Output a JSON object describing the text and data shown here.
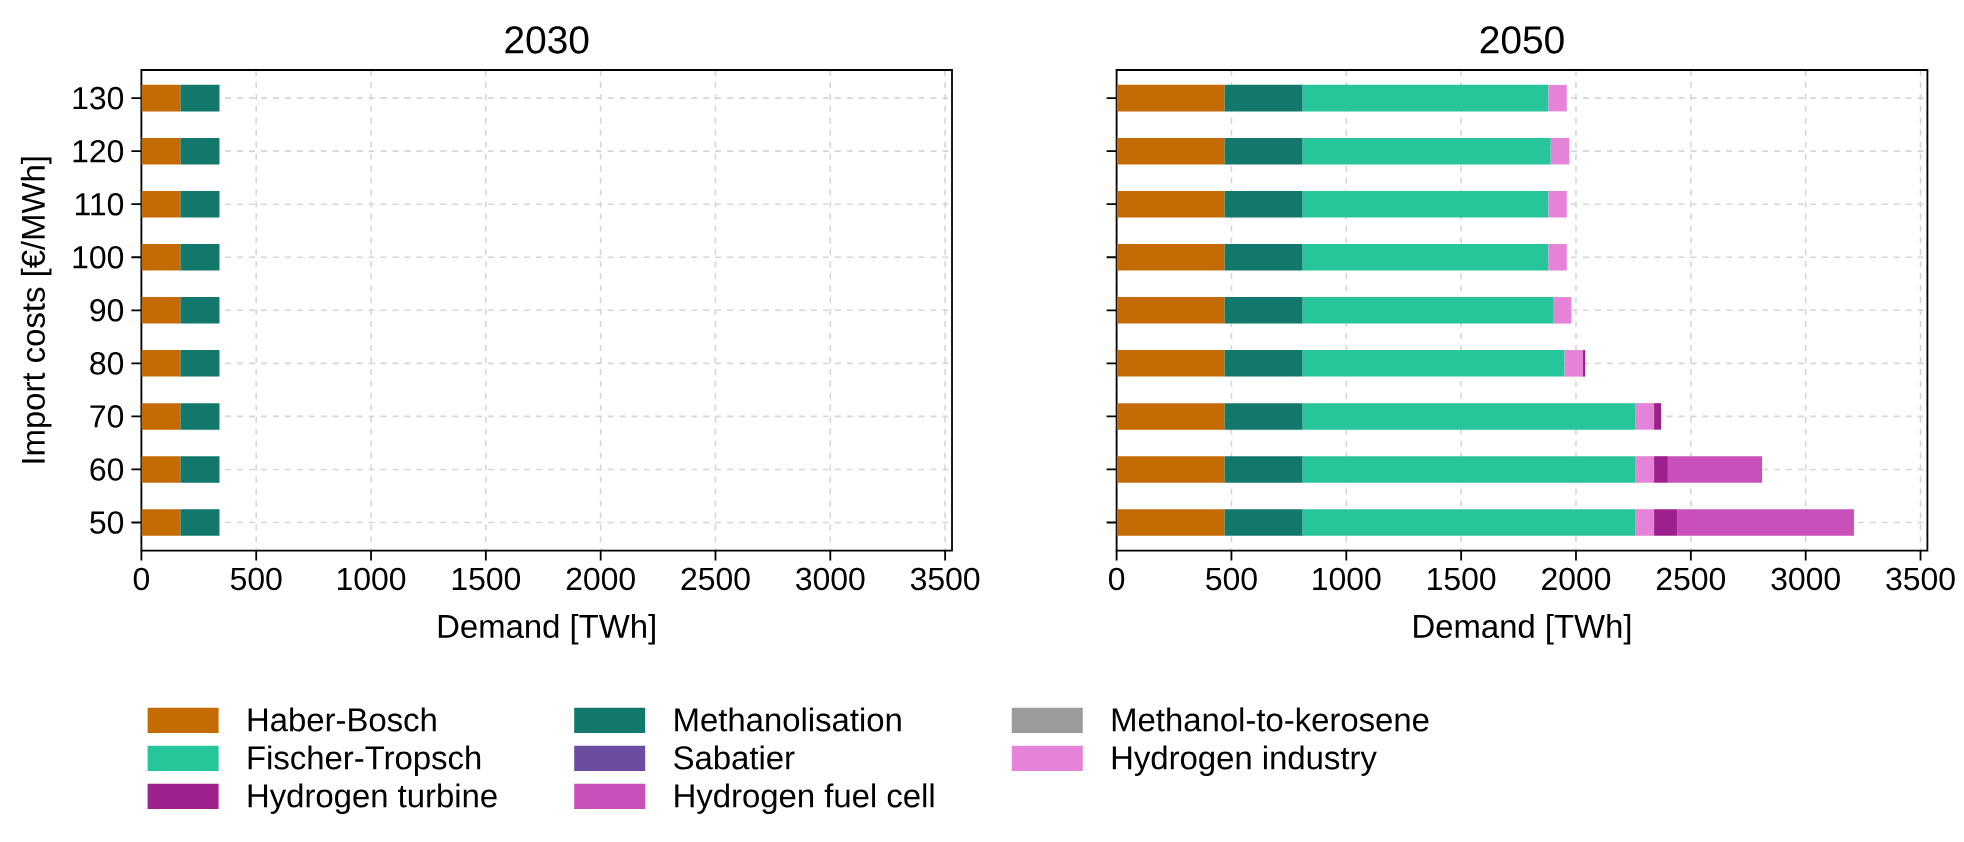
{
  "chart_data": [
    {
      "type": "bar",
      "orientation": "horizontal",
      "stacked": true,
      "title": "2030",
      "xlabel": "Demand [TWh]",
      "ylabel": "Import costs [€/MWh]",
      "categories": [
        "130",
        "120",
        "110",
        "100",
        "90",
        "80",
        "70",
        "60",
        "50"
      ],
      "xlim": [
        0,
        3530
      ],
      "xticks": [
        0,
        500,
        1000,
        1500,
        2000,
        2500,
        3000,
        3500
      ],
      "grid": true,
      "series": [
        {
          "color": "#c46b04",
          "values": [
            170,
            170,
            170,
            170,
            170,
            170,
            170,
            170,
            170
          ]
        },
        {
          "color": "#12786c",
          "values": [
            170,
            170,
            170,
            170,
            170,
            170,
            170,
            170,
            170
          ]
        }
      ]
    },
    {
      "type": "bar",
      "orientation": "horizontal",
      "stacked": true,
      "title": "2050",
      "xlabel": "Demand [TWh]",
      "categories": [
        "130",
        "120",
        "110",
        "100",
        "90",
        "80",
        "70",
        "60",
        "50"
      ],
      "xlim": [
        0,
        3530
      ],
      "xticks": [
        0,
        500,
        1000,
        1500,
        2000,
        2500,
        3000,
        3500
      ],
      "grid": true,
      "tick_labels": "x",
      "legend": "bottom",
      "series": [
        {
          "name": "Haber-Bosch",
          "color": "#c46b04",
          "values": [
            470,
            470,
            470,
            470,
            470,
            470,
            470,
            470,
            470
          ]
        },
        {
          "name": "Methanolisation",
          "color": "#12786c",
          "values": [
            340,
            340,
            340,
            340,
            340,
            340,
            340,
            340,
            340
          ]
        },
        {
          "name": "Methanol-to-kerosene",
          "color": "#9b9b9b",
          "values": [
            0,
            0,
            0,
            0,
            0,
            0,
            0,
            0,
            0
          ]
        },
        {
          "name": "Fischer-Tropsch",
          "color": "#26c69a",
          "values": [
            1070,
            1080,
            1070,
            1070,
            1090,
            1140,
            1450,
            1450,
            1450
          ]
        },
        {
          "name": "Sabatier",
          "color": "#6c4ca0",
          "values": [
            0,
            0,
            0,
            0,
            0,
            0,
            0,
            0,
            0
          ]
        },
        {
          "name": "Hydrogen industry",
          "color": "#e583d8",
          "values": [
            80,
            80,
            80,
            80,
            80,
            80,
            80,
            80,
            80
          ]
        },
        {
          "name": "Hydrogen turbine",
          "color": "#9e208c",
          "values": [
            0,
            0,
            0,
            0,
            0,
            10,
            30,
            60,
            100
          ]
        },
        {
          "name": "Hydrogen fuel cell",
          "color": "#c94fbb",
          "values": [
            0,
            0,
            0,
            0,
            0,
            0,
            0,
            410,
            770
          ]
        }
      ]
    }
  ]
}
